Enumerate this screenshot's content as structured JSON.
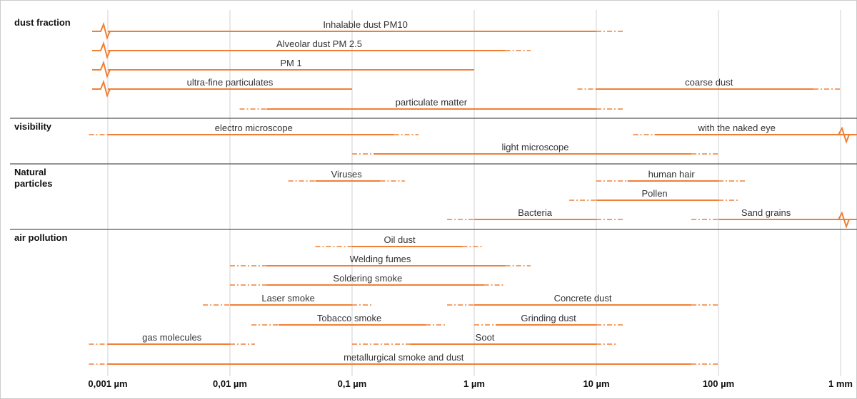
{
  "chart_data": {
    "type": "range",
    "x_scale": "log",
    "x_unit": "µm",
    "xlim": [
      0.0005,
      1500
    ],
    "ticks": [
      {
        "value": 0.001,
        "label": "0,001 µm"
      },
      {
        "value": 0.01,
        "label": "0,01 µm"
      },
      {
        "value": 0.1,
        "label": "0,1 µm"
      },
      {
        "value": 1,
        "label": "1 µm"
      },
      {
        "value": 10,
        "label": "10 µm"
      },
      {
        "value": 100,
        "label": "100 µm"
      },
      {
        "value": 1000,
        "label": "1 mm"
      }
    ],
    "grid": true,
    "colors": {
      "range": "#f07f33",
      "grid": "#d0d0d0",
      "separator": "#555555"
    },
    "groups": [
      {
        "title_lines": [
          "dust fraction"
        ],
        "ranges": [
          {
            "label": "Inhalable dust PM10",
            "solid": [
              0.001,
              10
            ],
            "dashed_left": null,
            "dashed_right": [
              10,
              16.5
            ],
            "break_left": true,
            "break_right": false,
            "open_left": true,
            "open_right": false
          },
          {
            "label": "Alveolar dust PM 2.5",
            "solid": [
              0.001,
              1.8
            ],
            "dashed_left": null,
            "dashed_right": [
              1.8,
              2.9
            ],
            "break_left": true,
            "break_right": false,
            "open_left": true,
            "open_right": false
          },
          {
            "label": "PM 1",
            "solid": [
              0.001,
              1.0
            ],
            "dashed_left": null,
            "dashed_right": null,
            "break_left": true,
            "break_right": false,
            "open_left": true,
            "open_right": false
          },
          {
            "label": "ultra-fine particulates",
            "solid": [
              0.001,
              0.1
            ],
            "dashed_left": null,
            "dashed_right": null,
            "break_left": true,
            "break_right": false,
            "open_left": true,
            "open_right": false
          },
          {
            "label": "coarse dust",
            "solid": [
              10,
              600
            ],
            "dashed_left": [
              7,
              10
            ],
            "dashed_right": [
              600,
              1000
            ],
            "break_left": false,
            "break_right": false,
            "open_left": false,
            "open_right": false
          },
          {
            "label": "particulate matter",
            "solid": [
              0.02,
              10
            ],
            "dashed_left": [
              0.012,
              0.02
            ],
            "dashed_right": [
              10,
              16.5
            ],
            "break_left": false,
            "break_right": false,
            "open_left": false,
            "open_right": false
          }
        ]
      },
      {
        "title_lines": [
          "visibility"
        ],
        "ranges": [
          {
            "label": "electro microscope",
            "solid": [
              0.001,
              0.22
            ],
            "dashed_left": [
              0.0007,
              0.001
            ],
            "dashed_right": [
              0.22,
              0.35
            ],
            "break_left": false,
            "break_right": false,
            "open_left": false,
            "open_right": false
          },
          {
            "label": "with the naked eye",
            "solid": [
              30,
              1000
            ],
            "dashed_left": [
              20,
              30
            ],
            "dashed_right": null,
            "break_left": false,
            "break_right": true,
            "open_left": false,
            "open_right": true
          },
          {
            "label": "light microscope",
            "solid": [
              0.15,
              60
            ],
            "dashed_left": [
              0.1,
              0.15
            ],
            "dashed_right": [
              60,
              100
            ],
            "break_left": false,
            "break_right": false,
            "open_left": false,
            "open_right": false
          }
        ]
      },
      {
        "title_lines": [
          "Natural",
          "particles"
        ],
        "ranges": [
          {
            "label": "Viruses",
            "solid": [
              0.05,
              0.17
            ],
            "dashed_left": [
              0.03,
              0.05
            ],
            "dashed_right": [
              0.17,
              0.27
            ],
            "break_left": false,
            "break_right": false,
            "open_left": false,
            "open_right": false
          },
          {
            "label": "human hair",
            "solid": [
              18,
              100
            ],
            "dashed_left": [
              10,
              18
            ],
            "dashed_right": [
              100,
              170
            ],
            "break_left": false,
            "break_right": false,
            "open_left": false,
            "open_right": false
          },
          {
            "label": "Pollen",
            "solid": [
              10,
              100
            ],
            "dashed_left": [
              6,
              10
            ],
            "dashed_right": [
              100,
              150
            ],
            "break_left": false,
            "break_right": false,
            "open_left": false,
            "open_right": false
          },
          {
            "label": "Bacteria",
            "solid": [
              1,
              10
            ],
            "dashed_left": [
              0.6,
              1
            ],
            "dashed_right": [
              10,
              16.5
            ],
            "break_left": false,
            "break_right": false,
            "open_left": false,
            "open_right": false
          },
          {
            "label": "Sand grains",
            "solid": [
              100,
              1000
            ],
            "dashed_left": [
              60,
              100
            ],
            "dashed_right": null,
            "break_left": false,
            "break_right": true,
            "open_left": false,
            "open_right": true
          }
        ]
      },
      {
        "title_lines": [
          "air pollution"
        ],
        "ranges": [
          {
            "label": "Oil dust",
            "solid": [
              0.1,
              0.8
            ],
            "dashed_left": [
              0.05,
              0.1
            ],
            "dashed_right": [
              0.8,
              1.2
            ],
            "break_left": false,
            "break_right": false,
            "open_left": false,
            "open_right": false
          },
          {
            "label": "Welding fumes",
            "solid": [
              0.02,
              1.8
            ],
            "dashed_left": [
              0.01,
              0.02
            ],
            "dashed_right": [
              1.8,
              2.9
            ],
            "break_left": false,
            "break_right": false,
            "open_left": false,
            "open_right": false
          },
          {
            "label": "Soldering smoke",
            "solid": [
              0.02,
              1.2
            ],
            "dashed_left": [
              0.01,
              0.02
            ],
            "dashed_right": [
              1.2,
              1.8
            ],
            "break_left": false,
            "break_right": false,
            "open_left": false,
            "open_right": false
          },
          {
            "label": "Laser smoke",
            "solid": [
              0.01,
              0.1
            ],
            "dashed_left": [
              0.006,
              0.01
            ],
            "dashed_right": [
              0.1,
              0.15
            ],
            "break_left": false,
            "break_right": false,
            "open_left": false,
            "open_right": false
          },
          {
            "label": "Concrete dust",
            "solid": [
              1,
              60
            ],
            "dashed_left": [
              0.6,
              1
            ],
            "dashed_right": [
              60,
              100
            ],
            "break_left": false,
            "break_right": false,
            "open_left": false,
            "open_right": false
          },
          {
            "label": "Tobacco smoke",
            "solid": [
              0.025,
              0.4
            ],
            "dashed_left": [
              0.015,
              0.025
            ],
            "dashed_right": [
              0.4,
              0.6
            ],
            "break_left": false,
            "break_right": false,
            "open_left": false,
            "open_right": false
          },
          {
            "label": "Grinding dust",
            "solid": [
              1.5,
              10
            ],
            "dashed_left": [
              1,
              1.5
            ],
            "dashed_right": [
              10,
              16.5
            ],
            "break_left": false,
            "break_right": false,
            "open_left": false,
            "open_right": false
          },
          {
            "label": "gas molecules",
            "solid": [
              0.001,
              0.01
            ],
            "dashed_left": [
              0.0007,
              0.001
            ],
            "dashed_right": [
              0.01,
              0.016
            ],
            "break_left": false,
            "break_right": false,
            "open_left": false,
            "open_right": false
          },
          {
            "label": "Soot",
            "solid": [
              0.3,
              10
            ],
            "dashed_left": [
              0.1,
              0.3
            ],
            "dashed_right": [
              10,
              15
            ],
            "break_left": false,
            "break_right": false,
            "open_left": false,
            "open_right": false
          },
          {
            "label": "metallurgical smoke and dust",
            "solid": [
              0.001,
              60
            ],
            "dashed_left": [
              0.0007,
              0.001
            ],
            "dashed_right": [
              60,
              100
            ],
            "break_left": false,
            "break_right": false,
            "open_left": false,
            "open_right": false
          }
        ]
      }
    ]
  }
}
